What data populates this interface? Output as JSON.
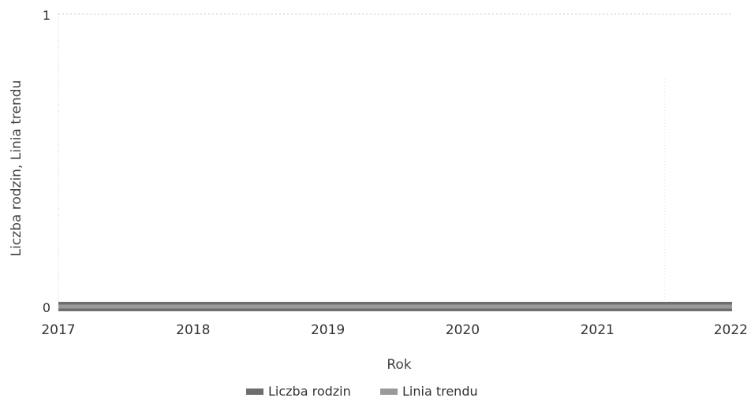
{
  "chart_data": {
    "type": "line",
    "title": "",
    "xlabel": "Rok",
    "ylabel": "Liczba rodzin, Linia trendu",
    "x": [
      2017,
      2018,
      2019,
      2020,
      2021,
      2022
    ],
    "x_ticks": [
      "2017",
      "2018",
      "2019",
      "2020",
      "2021",
      "2022"
    ],
    "y_ticks": [
      "0",
      "1"
    ],
    "xlim": [
      2017,
      2022
    ],
    "ylim": [
      0,
      1
    ],
    "grid": true,
    "legend_position": "bottom",
    "series": [
      {
        "name": "Liczba rodzin",
        "color": "#6e6e6e",
        "values": [
          0,
          0,
          0,
          0,
          0,
          0
        ]
      },
      {
        "name": "Linia trendu",
        "color": "#9a9a9a",
        "values": [
          0,
          0,
          0,
          0,
          0,
          0
        ]
      }
    ]
  }
}
